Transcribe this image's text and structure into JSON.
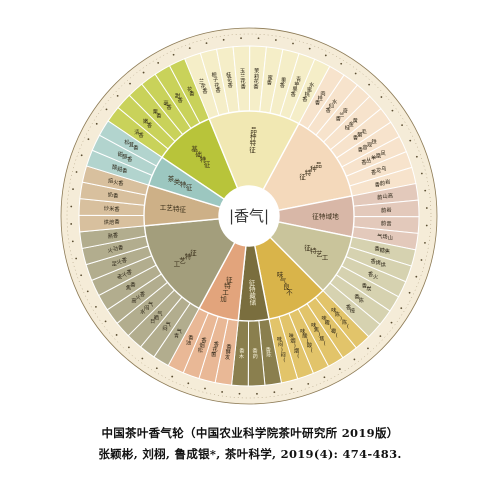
{
  "center_label": "|香气|",
  "caption": {
    "line1": "中国茶叶香气轮（中国农业科学院茶叶研究所 2019版）",
    "line2": "张颖彬, 刘栩, 鲁成银*, 茶叶科学, 2019(4): 474-483."
  },
  "palette": {
    "outer_ring": "#f5ecd8",
    "outer_border": "#8c7a55",
    "center_fill": "#ffffff",
    "divider": "#ffffff"
  },
  "wheel": {
    "categories": [
      {
        "label": "基础特征",
        "color": "#b8c43a",
        "leaf_color": "#c9d25a",
        "leaves": [
          "清香",
          "嫩香",
          "栗香",
          "毫香",
          "甜香",
          "花香"
        ]
      },
      {
        "label": "品种特征",
        "color": "#f1e8b3",
        "leaf_color": "#f5eec8",
        "leaves": [
          "兰花香",
          "栀子花香",
          "桂花香",
          "玉兰花香",
          "茉莉花香",
          "蜜香",
          "果香",
          "青苹果香",
          "水蜜桃香"
        ]
      },
      {
        "label": "品种特征",
        "color": "#f4d9bb",
        "leaf_color": "#f7e3cc",
        "leaves": [
          "肉桂香",
          "水仙香",
          "奇兰香",
          "黄金桂",
          "毛蟹香",
          "铁观音香",
          "凤凰单丛香",
          "乌龙香",
          "岩韵香"
        ]
      },
      {
        "label": "地域特征",
        "color": "#d8b7a7",
        "leaf_color": "#e3c9bb",
        "leaves": [
          "高山韵",
          "岩韵",
          "音韵",
          "山场气"
        ]
      },
      {
        "label": "工艺特征",
        "color": "#c9c49b",
        "leaf_color": "#d6d2b0",
        "leaves": [
          "焦糖香",
          "烘烤香",
          "火香",
          "炭香",
          "陈香",
          "樟香"
        ]
      },
      {
        "label": "不良气味",
        "color": "#d9b44a",
        "leaf_color": "#e2c46a",
        "leaves": [
          "(陈)陈味",
          "(霉)霉味",
          "(焦)焦味",
          "(酸)酸味",
          "(烟)烟味",
          "(闷)闷味"
        ]
      },
      {
        "label": "储藏特征",
        "color": "#7a6e3e",
        "leaf_color": "#8a7f4e",
        "leaves": [
          "陈香",
          "药香",
          "木香"
        ]
      },
      {
        "label": "加工特征",
        "color": "#e2a47c",
        "leaf_color": "#e9b896",
        "leaves": [
          "发酵香",
          "菌花香",
          "松烟香",
          "油香"
        ]
      },
      {
        "label": "工艺特征",
        "color": "#a39e7c",
        "leaf_color": "#b2ad8e",
        "leaves": [
          "青气",
          "闷气",
          "日晒气",
          "水闷气",
          "高火香",
          "焦香",
          "老火香",
          "足火香",
          "火功香",
          "熟香"
        ]
      },
      {
        "label": "工艺特征",
        "color": "#cdb087",
        "leaf_color": "#d8c09e",
        "leaves": [
          "烘焙香",
          "炒米香",
          "奶香",
          "焙火香"
        ]
      },
      {
        "label": "茶类特征",
        "color": "#9cc7c0",
        "leaf_color": "#b2d4ce",
        "leaves": [
          "酸甜香",
          "甜醇香",
          "松茸香"
        ]
      }
    ]
  }
}
